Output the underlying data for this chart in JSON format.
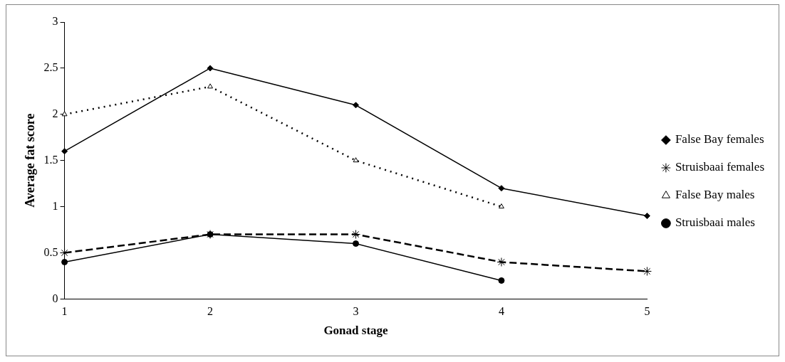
{
  "chart_data": {
    "type": "line",
    "xlabel": "Gonad stage",
    "ylabel": "Average fat score",
    "categories": [
      "1",
      "2",
      "3",
      "4",
      "5"
    ],
    "series": [
      {
        "name": "False Bay females",
        "color": "#000000",
        "marker": "diamond",
        "line_style": "solid",
        "values": [
          1.6,
          2.5,
          2.1,
          1.2,
          0.9
        ]
      },
      {
        "name": "Struisbaai females",
        "color": "#000000",
        "marker": "cross",
        "line_style": "dashed",
        "values": [
          0.5,
          0.7,
          0.7,
          0.4,
          0.3
        ]
      },
      {
        "name": "False Bay males",
        "color": "#000000",
        "marker": "triangle",
        "line_style": "dotted",
        "values": [
          2.0,
          2.3,
          1.5,
          1.0,
          null
        ]
      },
      {
        "name": "Struisbaai males",
        "color": "#000000",
        "marker": "circle",
        "line_style": "solid",
        "values": [
          0.4,
          0.7,
          0.6,
          0.2,
          null
        ]
      }
    ],
    "ylim": [
      0,
      3
    ],
    "yticks": [
      0,
      0.5,
      1,
      1.5,
      2,
      2.5,
      3
    ],
    "grid": false,
    "legend": "right"
  }
}
